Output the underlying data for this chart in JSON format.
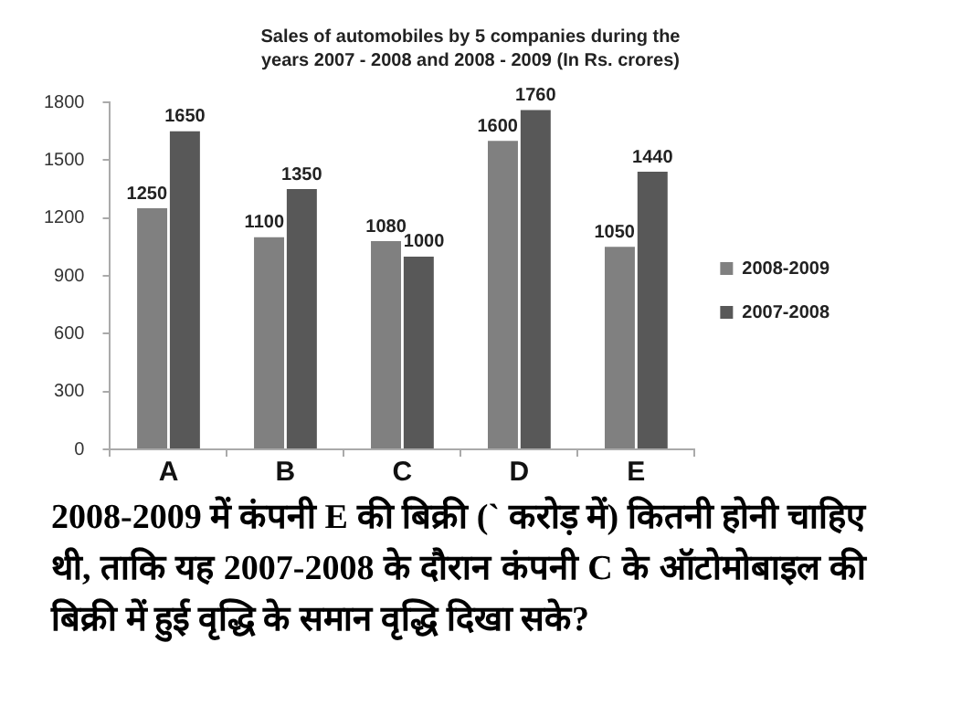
{
  "chart_data": {
    "type": "bar",
    "title": "Sales of automobiles by 5 companies during the years 2007 - 2008 and 2008 - 2009 (In Rs. crores)",
    "categories": [
      "A",
      "B",
      "C",
      "D",
      "E"
    ],
    "series": [
      {
        "name": "2008-2009",
        "color": "#808080",
        "values": [
          1250,
          1100,
          1080,
          1600,
          1050
        ]
      },
      {
        "name": "2007-2008",
        "color": "#585858",
        "values": [
          1650,
          1350,
          1000,
          1760,
          1440
        ]
      }
    ],
    "ylim": [
      0,
      1800
    ],
    "yticks": [
      0,
      300,
      600,
      900,
      1200,
      1500,
      1800
    ],
    "data_labels": true,
    "legend": "right",
    "annotations": [
      "2008-2009 में कंपनी E की बिक्री (` करोड़ में) कितनी होनी चाहिए थी, ताकि यह 2007-2008 के दौरान कंपनी C के ऑटोमोबाइल की बिक्री में हुई वृद्धि के समान वृद्धि दिखा सके?"
    ]
  }
}
